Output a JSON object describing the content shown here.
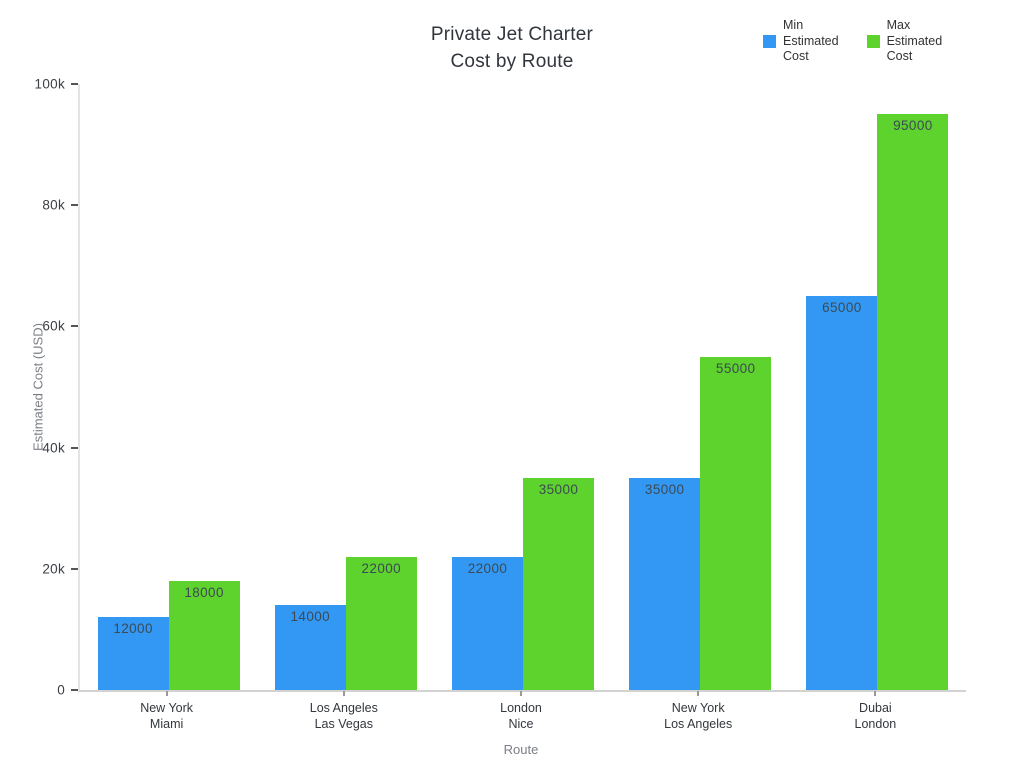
{
  "title_lines": [
    "Private Jet Charter",
    "Cost by Route"
  ],
  "chart_data": {
    "type": "bar",
    "title": "Private Jet Charter Cost by Route",
    "xlabel": "Route",
    "ylabel": "Estimated Cost (USD)",
    "grid": false,
    "legend_position": "top-right",
    "bar_value_labels": true,
    "categories": [
      [
        "New York",
        "Miami"
      ],
      [
        "Los Angeles",
        "Las Vegas"
      ],
      [
        "London",
        "Nice"
      ],
      [
        "New York",
        "Los Angeles"
      ],
      [
        "Dubai",
        "London"
      ]
    ],
    "series": [
      {
        "name": "Min Estimated Cost",
        "legend_lines": [
          "Min",
          "Estimated",
          "Cost"
        ],
        "color": "#3398F4",
        "values": [
          12000,
          14000,
          22000,
          35000,
          65000
        ]
      },
      {
        "name": "Max Estimated Cost",
        "legend_lines": [
          "Max",
          "Estimated",
          "Cost"
        ],
        "color": "#5FD32D",
        "values": [
          18000,
          22000,
          35000,
          55000,
          95000
        ]
      }
    ],
    "ylim": [
      0,
      100000
    ],
    "yticks": [
      {
        "value": 0,
        "label": "0"
      },
      {
        "value": 20000,
        "label": "20k"
      },
      {
        "value": 40000,
        "label": "40k"
      },
      {
        "value": 60000,
        "label": "60k"
      },
      {
        "value": 80000,
        "label": "80k"
      },
      {
        "value": 100000,
        "label": "100k"
      }
    ]
  }
}
